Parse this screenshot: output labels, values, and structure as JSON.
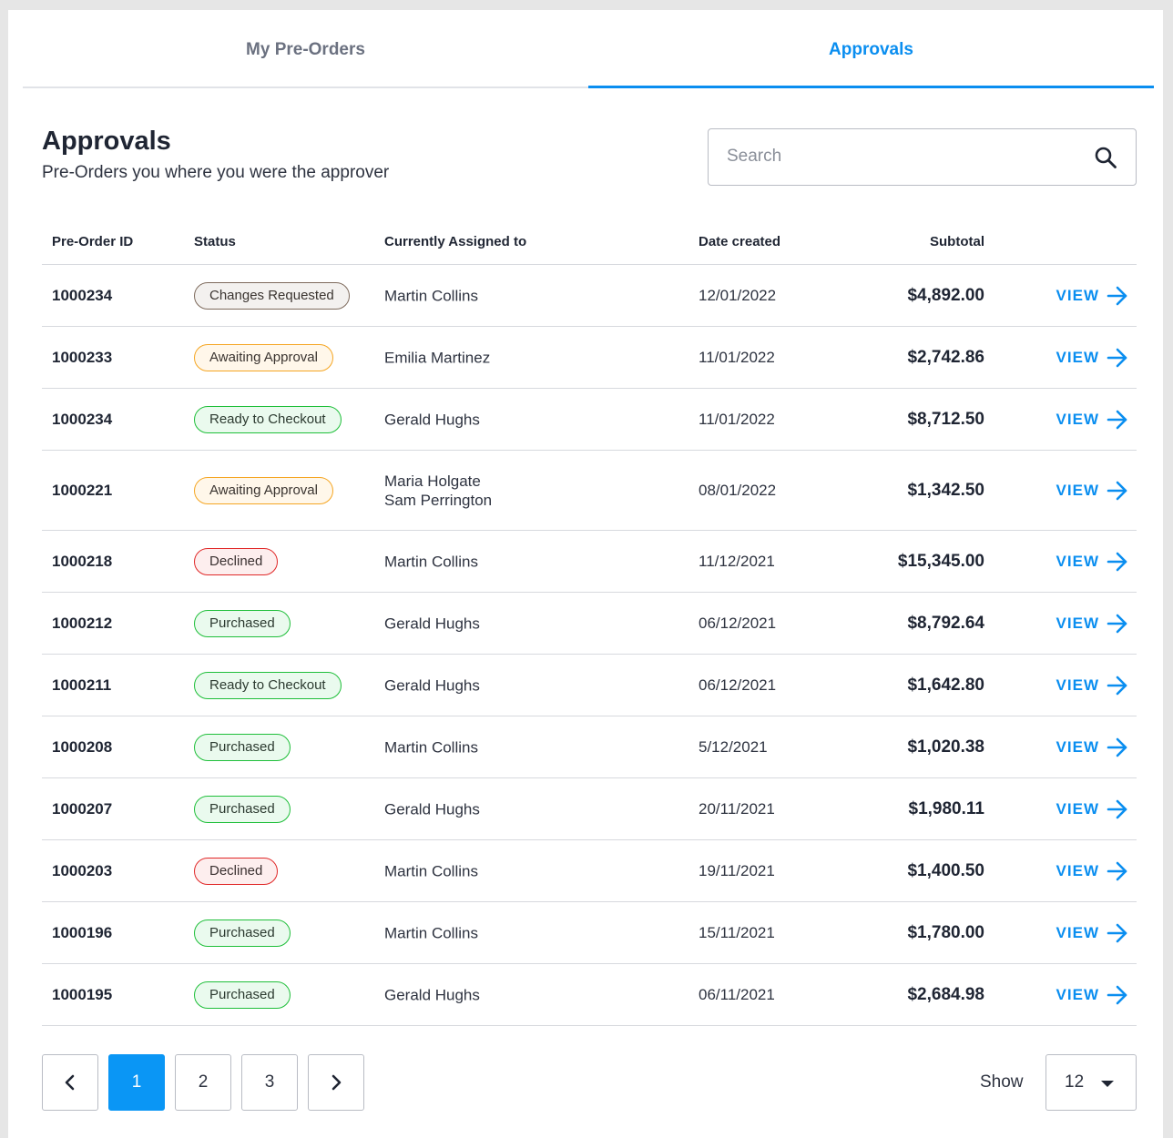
{
  "tabs": [
    {
      "label": "My Pre-Orders",
      "active": false
    },
    {
      "label": "Approvals",
      "active": true
    }
  ],
  "page": {
    "title": "Approvals",
    "subtitle": "Pre-Orders you where you were the approver"
  },
  "search": {
    "placeholder": "Search",
    "value": ""
  },
  "table": {
    "headers": {
      "id": "Pre-Order ID",
      "status": "Status",
      "assigned": "Currently Assigned to",
      "date": "Date created",
      "subtotal": "Subtotal"
    },
    "view_label": "VIEW",
    "rows": [
      {
        "id": "1000234",
        "status": "Changes Requested",
        "status_type": "changes",
        "assigned": [
          "Martin Collins"
        ],
        "date": "12/01/2022",
        "subtotal": "$4,892.00"
      },
      {
        "id": "1000233",
        "status": "Awaiting Approval",
        "status_type": "awaiting",
        "assigned": [
          "Emilia Martinez"
        ],
        "date": "11/01/2022",
        "subtotal": "$2,742.86"
      },
      {
        "id": "1000234",
        "status": "Ready to Checkout",
        "status_type": "ready",
        "assigned": [
          "Gerald Hughs"
        ],
        "date": "11/01/2022",
        "subtotal": "$8,712.50"
      },
      {
        "id": "1000221",
        "status": "Awaiting Approval",
        "status_type": "awaiting",
        "assigned": [
          "Maria Holgate",
          "Sam Perrington"
        ],
        "date": "08/01/2022",
        "subtotal": "$1,342.50"
      },
      {
        "id": "1000218",
        "status": "Declined",
        "status_type": "declined",
        "assigned": [
          "Martin Collins"
        ],
        "date": "11/12/2021",
        "subtotal": "$15,345.00"
      },
      {
        "id": "1000212",
        "status": "Purchased",
        "status_type": "purchased",
        "assigned": [
          "Gerald Hughs"
        ],
        "date": "06/12/2021",
        "subtotal": "$8,792.64"
      },
      {
        "id": "1000211",
        "status": "Ready to Checkout",
        "status_type": "ready",
        "assigned": [
          "Gerald Hughs"
        ],
        "date": "06/12/2021",
        "subtotal": "$1,642.80"
      },
      {
        "id": "1000208",
        "status": "Purchased",
        "status_type": "purchased",
        "assigned": [
          "Martin Collins"
        ],
        "date": "5/12/2021",
        "subtotal": "$1,020.38"
      },
      {
        "id": "1000207",
        "status": "Purchased",
        "status_type": "purchased",
        "assigned": [
          "Gerald Hughs"
        ],
        "date": "20/11/2021",
        "subtotal": "$1,980.11"
      },
      {
        "id": "1000203",
        "status": "Declined",
        "status_type": "declined",
        "assigned": [
          "Martin Collins"
        ],
        "date": "19/11/2021",
        "subtotal": "$1,400.50"
      },
      {
        "id": "1000196",
        "status": "Purchased",
        "status_type": "purchased",
        "assigned": [
          "Martin Collins"
        ],
        "date": "15/11/2021",
        "subtotal": "$1,780.00"
      },
      {
        "id": "1000195",
        "status": "Purchased",
        "status_type": "purchased",
        "assigned": [
          "Gerald Hughs"
        ],
        "date": "06/11/2021",
        "subtotal": "$2,684.98"
      }
    ]
  },
  "pagination": {
    "pages": [
      "1",
      "2",
      "3"
    ],
    "current": "1",
    "prev_icon": "chevron-left-icon",
    "next_icon": "chevron-right-icon"
  },
  "page_size": {
    "label": "Show",
    "value": "12",
    "icon": "caret-down-icon"
  },
  "colors": {
    "accent": "#0a8ef0",
    "changes": "#7d6a5c",
    "awaiting": "#f5a623",
    "ready": "#1fbf3a",
    "declined": "#e02828",
    "purchased": "#1fbf3a"
  }
}
